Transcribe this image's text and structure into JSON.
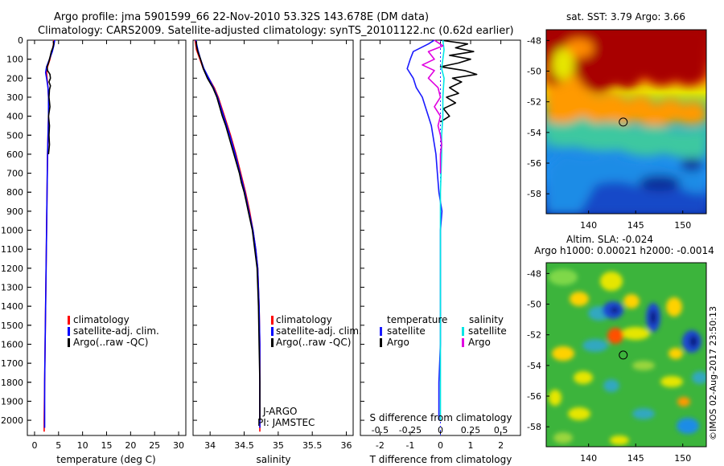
{
  "header": {
    "title_line1": "Argo profile: jma 5901599_66 22-Nov-2010 53.32S 143.678E (DM data)",
    "title_line2": "Climatology: CARS2009. Satellite-adjusted climatology: synTS_20101122.nc (0.62d earlier)"
  },
  "colors": {
    "climatology": "#ff0000",
    "satellite": "#0000ff",
    "argo": "#000000",
    "t_satellite": "#1a1aff",
    "s_satellite": "#00e5e5",
    "s_argo": "#e000e0"
  },
  "depth_axis": {
    "ticks": [
      0,
      100,
      200,
      300,
      400,
      500,
      600,
      700,
      800,
      900,
      1000,
      1100,
      1200,
      1300,
      1400,
      1500,
      1600,
      1700,
      1800,
      1900,
      2000
    ],
    "range": [
      0,
      2080
    ]
  },
  "chart_data": [
    {
      "type": "line",
      "name": "temperature-profile",
      "xlabel": "temperature (deg C)",
      "xlim": [
        -1.5,
        31.5
      ],
      "xticks": [
        0,
        5,
        10,
        15,
        20,
        25,
        30
      ],
      "legend": [
        "climatology",
        "satellite-adj. clim.",
        "Argo(..raw -QC)"
      ],
      "series": [
        {
          "name": "climatology",
          "color": "#ff0000",
          "depth": [
            0,
            30,
            60,
            100,
            140,
            170,
            200,
            250,
            300,
            400,
            500,
            600,
            800,
            1000,
            1200,
            1400,
            1600,
            1800,
            2000,
            2060
          ],
          "values": [
            4.0,
            3.9,
            3.6,
            3.2,
            2.7,
            2.5,
            2.6,
            2.8,
            2.9,
            2.9,
            2.8,
            2.7,
            2.6,
            2.5,
            2.4,
            2.3,
            2.2,
            2.1,
            2.0,
            2.0
          ]
        },
        {
          "name": "satellite-adj. clim.",
          "color": "#0000ff",
          "depth": [
            0,
            30,
            60,
            100,
            140,
            170,
            200,
            250,
            300,
            400,
            500,
            600,
            800,
            1000,
            1200,
            1400,
            1600,
            1800,
            2000,
            2040
          ],
          "values": [
            4.2,
            4.0,
            3.7,
            3.1,
            2.5,
            2.3,
            2.5,
            2.8,
            2.9,
            2.9,
            2.8,
            2.7,
            2.6,
            2.5,
            2.4,
            2.3,
            2.2,
            2.1,
            2.1,
            2.1
          ]
        },
        {
          "name": "Argo(..raw -QC)",
          "color": "#000000",
          "depth": [
            5,
            20,
            40,
            60,
            80,
            100,
            120,
            140,
            160,
            180,
            200,
            220,
            240,
            260,
            300,
            350,
            400,
            450,
            500,
            550,
            600
          ],
          "values": [
            3.9,
            4.0,
            3.8,
            3.5,
            3.3,
            3.1,
            2.9,
            2.6,
            2.7,
            3.2,
            3.3,
            3.0,
            3.3,
            3.1,
            3.0,
            3.2,
            2.9,
            3.1,
            3.0,
            3.1,
            2.9
          ]
        }
      ]
    },
    {
      "type": "line",
      "name": "salinity-profile",
      "xlabel": "salinity",
      "xlim": [
        33.75,
        36.1
      ],
      "xticks": [
        34,
        34.5,
        35,
        35.5,
        36
      ],
      "xticklabels": [
        "34",
        "34.5",
        "35",
        "35.5",
        "36"
      ],
      "legend": [
        "climatology",
        "satellite-adj. clim.",
        "Argo(..raw -QC)"
      ],
      "annotations": [
        "J-ARGO",
        "PI: JAMSTEC"
      ],
      "series": [
        {
          "name": "climatology",
          "color": "#ff0000",
          "depth": [
            0,
            50,
            100,
            150,
            200,
            250,
            300,
            400,
            500,
            600,
            700,
            800,
            900,
            1000,
            1100,
            1200,
            1400,
            1600,
            1800,
            2000,
            2060
          ],
          "values": [
            33.78,
            33.8,
            33.85,
            33.9,
            33.98,
            34.06,
            34.12,
            34.21,
            34.3,
            34.38,
            34.45,
            34.52,
            34.58,
            34.63,
            34.67,
            34.7,
            34.72,
            34.73,
            34.73,
            34.73,
            34.73
          ]
        },
        {
          "name": "satellite-adj. clim.",
          "color": "#0000ff",
          "depth": [
            0,
            50,
            100,
            150,
            200,
            250,
            300,
            400,
            500,
            600,
            700,
            800,
            900,
            1000,
            1100,
            1200,
            1400,
            1600,
            1800,
            2000,
            2040
          ],
          "values": [
            33.79,
            33.82,
            33.86,
            33.91,
            33.98,
            34.05,
            34.11,
            34.2,
            34.29,
            34.37,
            34.44,
            34.51,
            34.57,
            34.63,
            34.67,
            34.7,
            34.72,
            34.73,
            34.73,
            34.73,
            34.73
          ]
        },
        {
          "name": "Argo(..raw -QC)",
          "color": "#000000",
          "depth": [
            5,
            30,
            60,
            100,
            150,
            200,
            250,
            300,
            350,
            400,
            450,
            500,
            550,
            600,
            650,
            700,
            750,
            800,
            850,
            900,
            1000,
            1200,
            1400,
            1600,
            1800,
            2000
          ],
          "values": [
            33.8,
            33.8,
            33.82,
            33.86,
            33.9,
            33.96,
            34.04,
            34.1,
            34.14,
            34.18,
            34.23,
            34.27,
            34.31,
            34.35,
            34.39,
            34.43,
            34.46,
            34.5,
            34.53,
            34.56,
            34.62,
            34.69,
            34.71,
            34.72,
            34.73,
            34.73
          ]
        }
      ]
    },
    {
      "type": "line",
      "name": "difference-profile",
      "xlabel": "T difference from climatology",
      "xlabel_top": "S difference from climatology",
      "xlim": [
        -2.65,
        2.65
      ],
      "xticks_T": [
        -2,
        -1,
        0,
        1,
        2
      ],
      "xticks_S": [
        -0.5,
        -0.25,
        0,
        0.25,
        0.5
      ],
      "xticklabels_S": [
        "-0.5",
        "-0.25",
        "0",
        "0.25",
        "0.5"
      ],
      "legend": {
        "temperature": "temperature",
        "salinity": "salinity",
        "satellite": "satellite",
        "argo": "Argo"
      },
      "series": [
        {
          "name": "T satellite",
          "color": "#1a1aff",
          "depth": [
            0,
            20,
            60,
            100,
            150,
            200,
            250,
            300,
            350,
            400,
            450,
            500,
            600,
            700,
            800,
            900,
            1000,
            1200,
            1400,
            1600,
            1800,
            2000
          ],
          "values": [
            -0.2,
            -0.4,
            -0.9,
            -1.0,
            -1.1,
            -0.9,
            -0.8,
            -0.6,
            -0.5,
            -0.4,
            -0.3,
            -0.25,
            -0.15,
            -0.1,
            -0.05,
            0.05,
            0.0,
            0.0,
            0.0,
            0.0,
            -0.05,
            -0.05
          ]
        },
        {
          "name": "T Argo",
          "color": "#000000",
          "depth": [
            0,
            20,
            40,
            60,
            80,
            100,
            120,
            140,
            160,
            180,
            200,
            220,
            250,
            280,
            300,
            330,
            360,
            400,
            430
          ],
          "values": [
            0.0,
            0.9,
            0.5,
            1.1,
            0.3,
            1.0,
            0.6,
            0.0,
            0.8,
            1.2,
            0.4,
            0.7,
            0.3,
            0.6,
            0.2,
            0.5,
            0.1,
            0.3,
            0.0
          ]
        },
        {
          "name": "S satellite",
          "color": "#00e5e5",
          "depth": [
            0,
            50,
            100,
            150,
            200,
            300,
            400,
            500,
            600,
            800,
            1000,
            1200,
            1400,
            1600,
            1800,
            2000
          ],
          "values": [
            0.02,
            0.03,
            0.02,
            0.01,
            0.03,
            0.02,
            0.02,
            0.01,
            0.01,
            0.0,
            0.0,
            0.0,
            0.0,
            0.0,
            0.0,
            0.0
          ]
        },
        {
          "name": "S Argo",
          "color": "#e000e0",
          "depth": [
            0,
            30,
            60,
            100,
            130,
            160,
            200,
            250,
            300,
            350,
            400,
            450,
            500,
            550,
            600,
            650,
            700
          ],
          "values": [
            -0.05,
            0.02,
            -0.1,
            -0.05,
            -0.15,
            -0.05,
            -0.1,
            -0.02,
            0.0,
            -0.05,
            0.0,
            -0.02,
            0.0,
            0.01,
            0.0,
            0.0,
            0.0
          ]
        }
      ]
    },
    {
      "type": "heatmap",
      "name": "sst-map",
      "title": "sat. SST: 3.79 Argo: 3.66",
      "xticks": [
        140,
        145,
        150
      ],
      "yticks": [
        -48,
        -50,
        -52,
        -54,
        -56,
        -58
      ],
      "xlim": [
        135.5,
        152.5
      ],
      "ylim": [
        -59.3,
        -47.3
      ],
      "marker": {
        "lon": 143.678,
        "lat": -53.32
      }
    },
    {
      "type": "heatmap",
      "name": "sla-map",
      "title_line1": "Altim. SLA: -0.024",
      "title_line2": "Argo h1000: 0.00021 h2000: -0.0014",
      "xticks": [
        140,
        145,
        150
      ],
      "yticks": [
        -48,
        -50,
        -52,
        -54,
        -56,
        -58
      ],
      "xlim": [
        135.5,
        152.5
      ],
      "ylim": [
        -59.3,
        -47.3
      ],
      "marker": {
        "lon": 143.678,
        "lat": -53.32
      }
    }
  ],
  "footer": {
    "stamp": "©IMOS 02-Aug-2017 23:50:13"
  }
}
